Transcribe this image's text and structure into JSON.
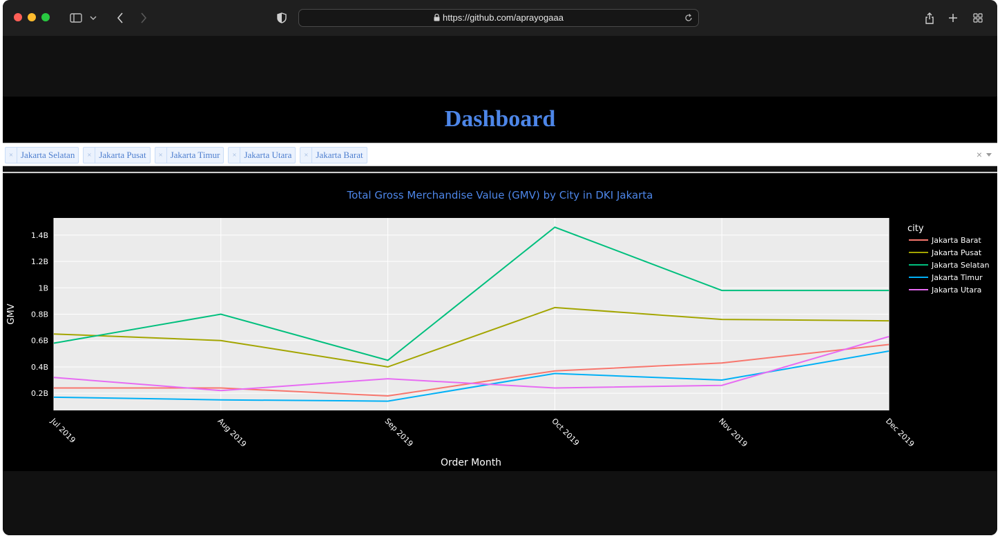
{
  "browser": {
    "url": "https://github.com/aprayogaaa"
  },
  "page": {
    "title": "Dashboard"
  },
  "filter": {
    "selected": [
      "Jakarta Selatan",
      "Jakarta Pusat",
      "Jakarta Timur",
      "Jakarta Utara",
      "Jakarta Barat"
    ],
    "remove_glyph": "×",
    "clear_glyph": "×"
  },
  "colors": {
    "title": "#4d86e8",
    "Jakarta Barat": "#F8766D",
    "Jakarta Pusat": "#A3A500",
    "Jakarta Selatan": "#00BF7D",
    "Jakarta Timur": "#00B0F6",
    "Jakarta Utara": "#E76BF3"
  },
  "chart_data": {
    "type": "line",
    "title": "Total Gross Merchandise Value (GMV) by City in DKI Jakarta",
    "xlabel": "Order Month",
    "ylabel": "GMV",
    "x": [
      "Jul 2019",
      "Aug 2019",
      "Sep 2019",
      "Oct 2019",
      "Nov 2019",
      "Dec 2019"
    ],
    "ylim": [
      0.07,
      1.53
    ],
    "yticks": [
      0.2,
      0.4,
      0.6,
      0.8,
      1.0,
      1.2,
      1.4
    ],
    "yticklabels": [
      "0.2B",
      "0.4B",
      "0.6B",
      "0.8B",
      "1B",
      "1.2B",
      "1.4B"
    ],
    "unit": "billion",
    "legend_title": "city",
    "legend_position": "right",
    "grid": true,
    "series": [
      {
        "name": "Jakarta Barat",
        "values": [
          0.24,
          0.24,
          0.18,
          0.37,
          0.43,
          0.57
        ]
      },
      {
        "name": "Jakarta Pusat",
        "values": [
          0.65,
          0.6,
          0.4,
          0.85,
          0.76,
          0.75
        ]
      },
      {
        "name": "Jakarta Selatan",
        "values": [
          0.58,
          0.8,
          0.45,
          1.46,
          0.98,
          0.98
        ]
      },
      {
        "name": "Jakarta Timur",
        "values": [
          0.17,
          0.15,
          0.14,
          0.35,
          0.3,
          0.52
        ]
      },
      {
        "name": "Jakarta Utara",
        "values": [
          0.32,
          0.22,
          0.31,
          0.24,
          0.26,
          0.63
        ]
      }
    ]
  }
}
